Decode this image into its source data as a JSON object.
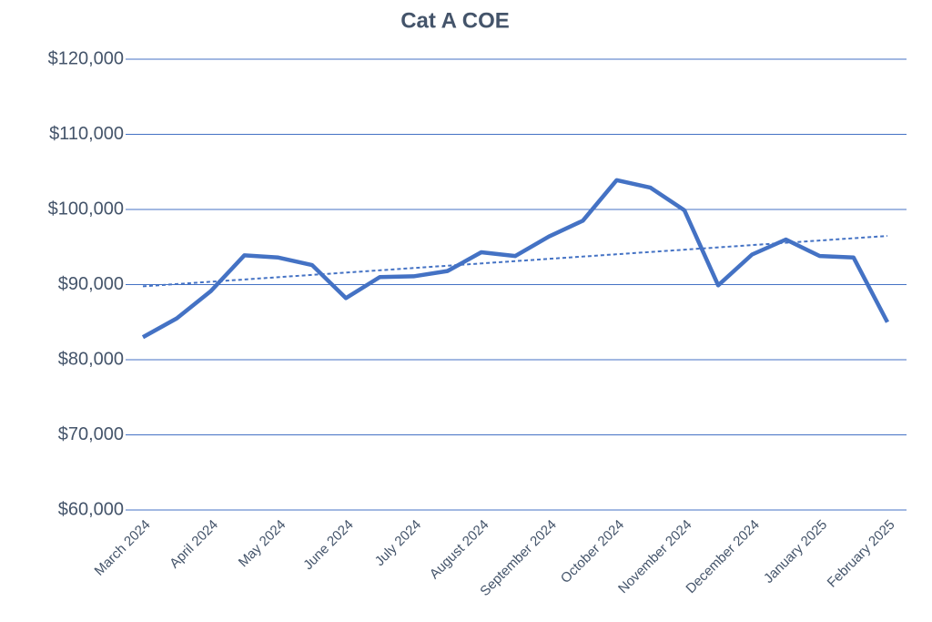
{
  "chart_data": {
    "type": "line",
    "title": "Cat A COE",
    "categories": [
      "March 2024",
      null,
      "April 2024",
      null,
      "May 2024",
      null,
      "June 2024",
      null,
      "July 2024",
      null,
      "August 2024",
      null,
      "September 2024",
      null,
      "October 2024",
      null,
      "November 2024",
      null,
      "December 2024",
      null,
      "January 2025",
      null,
      "February 2025"
    ],
    "series": [
      {
        "name": "Cat A COE",
        "color": "#4472c4",
        "values": [
          83000,
          85500,
          89100,
          93900,
          93600,
          92600,
          88200,
          91000,
          91100,
          91800,
          94300,
          93800,
          96400,
          98500,
          103900,
          102900,
          99900,
          89900,
          94000,
          96000,
          93800,
          93600,
          85000
        ]
      }
    ],
    "ylim": [
      60000,
      120000
    ],
    "yticks": [
      {
        "value": 60000,
        "label": "$60,000"
      },
      {
        "value": 70000,
        "label": "$70,000"
      },
      {
        "value": 80000,
        "label": "$80,000"
      },
      {
        "value": 90000,
        "label": "$90,000"
      },
      {
        "value": 100000,
        "label": "$100,000"
      },
      {
        "value": 110000,
        "label": "$110,000"
      },
      {
        "value": 120000,
        "label": "$120,000"
      }
    ],
    "grid": true,
    "trendline": true
  }
}
